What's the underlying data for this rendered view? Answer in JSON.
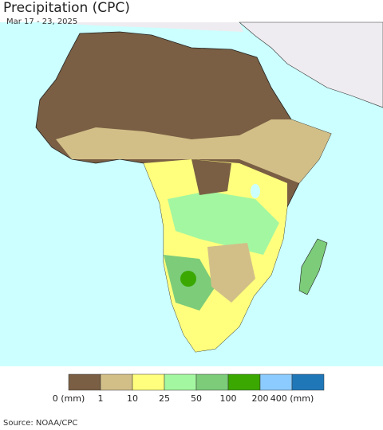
{
  "header": {
    "title": "Precipitation (CPC)",
    "subtitle": "Mar 17 - 23, 2025"
  },
  "legend": {
    "colors": [
      "#7a5f44",
      "#d2bf88",
      "#ffff7d",
      "#a3f7a0",
      "#7ccc7a",
      "#3aa800",
      "#8ccbff",
      "#1f77b8"
    ],
    "labels": [
      "0 (mm)",
      "1",
      "10",
      "25",
      "50",
      "100",
      "200",
      "400 (mm)"
    ]
  },
  "footer": {
    "source": "Source: NOAA/CPC"
  }
}
